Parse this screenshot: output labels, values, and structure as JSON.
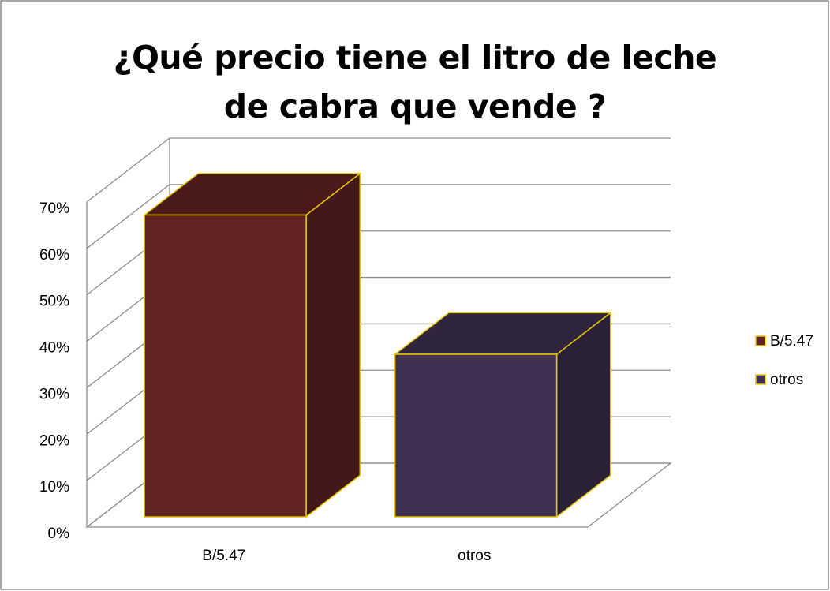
{
  "chart_data": {
    "type": "bar3d",
    "title": "¿Qué  precio tiene el litro de leche de cabra que vende ?",
    "categories": [
      "B/5.47",
      "otros"
    ],
    "values": [
      65,
      35
    ],
    "colors": [
      "#622423",
      "#3f3151"
    ],
    "ylim": [
      0,
      70
    ],
    "yticks": [
      {
        "value": 0,
        "label": "0%"
      },
      {
        "value": 10,
        "label": "10%"
      },
      {
        "value": 20,
        "label": "20%"
      },
      {
        "value": 30,
        "label": "30%"
      },
      {
        "value": 40,
        "label": "40%"
      },
      {
        "value": 50,
        "label": "50%"
      },
      {
        "value": 60,
        "label": "60%"
      },
      {
        "value": 70,
        "label": "70%"
      }
    ],
    "grid": true,
    "legend": "right"
  }
}
